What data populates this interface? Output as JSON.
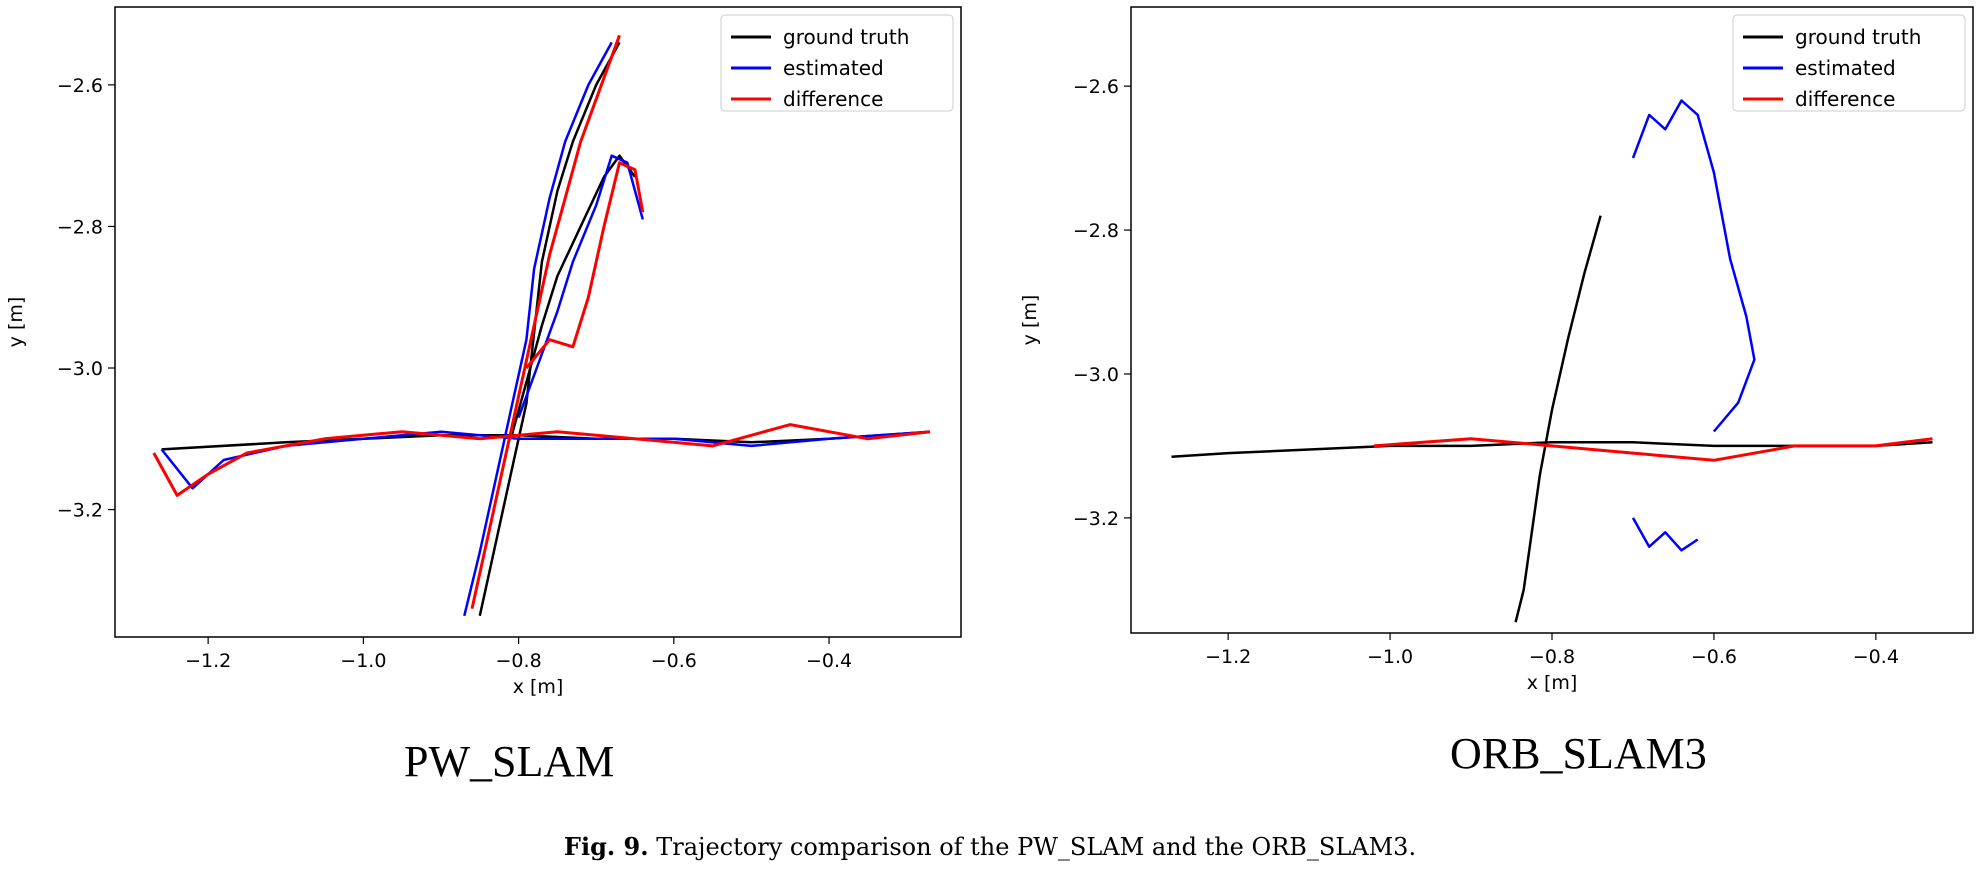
{
  "caption": {
    "label": "Fig. 9.",
    "text": "Trajectory comparison of the PW_SLAM and the ORB_SLAM3."
  },
  "colors": {
    "ground_truth": "#000000",
    "estimated": "#0000ff",
    "difference": "#ff0000"
  },
  "chart_data": [
    {
      "type": "line",
      "subtitle": "PW_SLAM",
      "xlabel": "x [m]",
      "ylabel": "y [m]",
      "xlim": [
        -1.32,
        -0.23
      ],
      "ylim": [
        -3.38,
        -2.49
      ],
      "xticks": [
        -1.2,
        -1.0,
        -0.8,
        -0.6,
        -0.4
      ],
      "yticks": [
        -2.6,
        -2.8,
        -3.0,
        -3.2
      ],
      "xtick_labels": [
        "−1.2",
        "−1.0",
        "−0.8",
        "−0.6",
        "−0.4"
      ],
      "ytick_labels": [
        "−2.6",
        "−2.8",
        "−3.0",
        "−3.2"
      ],
      "legend_position": "top-right",
      "series": [
        {
          "name": "ground truth",
          "color": "#000000",
          "x": [
            -1.26,
            -1.1,
            -1.0,
            -0.9,
            -0.8,
            -0.7,
            -0.6,
            -0.5,
            -0.4,
            -0.27
          ],
          "y": [
            -3.115,
            -3.105,
            -3.1,
            -3.095,
            -3.095,
            -3.1,
            -3.1,
            -3.105,
            -3.1,
            -3.09
          ]
        },
        {
          "name": "ground truth",
          "color": "#000000",
          "x": [
            -0.85,
            -0.83,
            -0.81,
            -0.79,
            -0.78,
            -0.77,
            -0.75,
            -0.73,
            -0.7,
            -0.67
          ],
          "y": [
            -3.35,
            -3.25,
            -3.15,
            -3.05,
            -2.95,
            -2.85,
            -2.75,
            -2.68,
            -2.6,
            -2.54
          ]
        },
        {
          "name": "ground truth",
          "color": "#000000",
          "x": [
            -0.81,
            -0.79,
            -0.77,
            -0.75,
            -0.72,
            -0.69,
            -0.67,
            -0.65
          ],
          "y": [
            -3.1,
            -3.02,
            -2.94,
            -2.87,
            -2.8,
            -2.73,
            -2.7,
            -2.73
          ]
        },
        {
          "name": "estimated",
          "color": "#0000ff",
          "x": [
            -1.26,
            -1.22,
            -1.18,
            -1.1,
            -1.0,
            -0.9,
            -0.8,
            -0.7,
            -0.6,
            -0.5,
            -0.4,
            -0.27
          ],
          "y": [
            -3.115,
            -3.17,
            -3.13,
            -3.11,
            -3.1,
            -3.09,
            -3.1,
            -3.1,
            -3.1,
            -3.11,
            -3.1,
            -3.09
          ]
        },
        {
          "name": "estimated",
          "color": "#0000ff",
          "x": [
            -0.87,
            -0.85,
            -0.83,
            -0.81,
            -0.79,
            -0.78,
            -0.76,
            -0.74,
            -0.71,
            -0.68
          ],
          "y": [
            -3.35,
            -3.26,
            -3.16,
            -3.06,
            -2.96,
            -2.86,
            -2.76,
            -2.68,
            -2.6,
            -2.54
          ]
        },
        {
          "name": "estimated",
          "color": "#0000ff",
          "x": [
            -0.8,
            -0.77,
            -0.75,
            -0.73,
            -0.7,
            -0.68,
            -0.66,
            -0.64
          ],
          "y": [
            -3.07,
            -2.98,
            -2.92,
            -2.85,
            -2.77,
            -2.7,
            -2.71,
            -2.79
          ]
        },
        {
          "name": "difference",
          "color": "#ff0000",
          "x": [
            -1.27,
            -1.24,
            -1.2,
            -1.15,
            -1.05,
            -0.95,
            -0.85,
            -0.75,
            -0.65,
            -0.55,
            -0.45,
            -0.35,
            -0.27
          ],
          "y": [
            -3.12,
            -3.18,
            -3.15,
            -3.12,
            -3.1,
            -3.09,
            -3.1,
            -3.09,
            -3.1,
            -3.11,
            -3.08,
            -3.1,
            -3.09
          ]
        },
        {
          "name": "difference",
          "color": "#ff0000",
          "x": [
            -0.86,
            -0.84,
            -0.82,
            -0.8,
            -0.78,
            -0.76,
            -0.74,
            -0.72,
            -0.69,
            -0.67
          ],
          "y": [
            -3.34,
            -3.24,
            -3.14,
            -3.04,
            -2.94,
            -2.84,
            -2.76,
            -2.68,
            -2.59,
            -2.53
          ]
        },
        {
          "name": "difference",
          "color": "#ff0000",
          "x": [
            -0.79,
            -0.76,
            -0.73,
            -0.71,
            -0.69,
            -0.67,
            -0.65,
            -0.64
          ],
          "y": [
            -3.0,
            -2.96,
            -2.97,
            -2.9,
            -2.8,
            -2.71,
            -2.72,
            -2.78
          ]
        }
      ]
    },
    {
      "type": "line",
      "subtitle": "ORB_SLAM3",
      "xlabel": "x [m]",
      "ylabel": "y [m]",
      "xlim": [
        -1.32,
        -0.28
      ],
      "ylim": [
        -3.36,
        -2.49
      ],
      "xticks": [
        -1.2,
        -1.0,
        -0.8,
        -0.6,
        -0.4
      ],
      "yticks": [
        -2.6,
        -2.8,
        -3.0,
        -3.2
      ],
      "xtick_labels": [
        "−1.2",
        "−1.0",
        "−0.8",
        "−0.6",
        "−0.4"
      ],
      "ytick_labels": [
        "−2.6",
        "−2.8",
        "−3.0",
        "−3.2"
      ],
      "legend_position": "top-right",
      "series": [
        {
          "name": "ground truth",
          "color": "#000000",
          "x": [
            -1.27,
            -1.2,
            -1.1,
            -1.0,
            -0.9,
            -0.8,
            -0.7,
            -0.6,
            -0.5,
            -0.4,
            -0.33
          ],
          "y": [
            -3.115,
            -3.11,
            -3.105,
            -3.1,
            -3.1,
            -3.095,
            -3.095,
            -3.1,
            -3.1,
            -3.1,
            -3.095
          ]
        },
        {
          "name": "ground truth",
          "color": "#000000",
          "x": [
            -0.845,
            -0.835,
            -0.825,
            -0.815,
            -0.8,
            -0.78,
            -0.76,
            -0.74
          ],
          "y": [
            -3.345,
            -3.3,
            -3.22,
            -3.14,
            -3.05,
            -2.95,
            -2.86,
            -2.78
          ]
        },
        {
          "name": "estimated",
          "color": "#0000ff",
          "x": [
            -0.7,
            -0.68,
            -0.66,
            -0.64,
            -0.62,
            -0.6,
            -0.58,
            -0.56,
            -0.55,
            -0.57,
            -0.6
          ],
          "y": [
            -2.7,
            -2.64,
            -2.66,
            -2.62,
            -2.64,
            -2.72,
            -2.84,
            -2.92,
            -2.98,
            -3.04,
            -3.08
          ]
        },
        {
          "name": "estimated",
          "color": "#0000ff",
          "x": [
            -0.7,
            -0.68,
            -0.66,
            -0.64,
            -0.62
          ],
          "y": [
            -3.2,
            -3.24,
            -3.22,
            -3.245,
            -3.23
          ]
        },
        {
          "name": "difference",
          "color": "#ff0000",
          "x": [
            -1.02,
            -0.9,
            -0.8,
            -0.7,
            -0.6,
            -0.5,
            -0.4,
            -0.33
          ],
          "y": [
            -3.1,
            -3.09,
            -3.1,
            -3.11,
            -3.12,
            -3.1,
            -3.1,
            -3.09
          ]
        }
      ]
    }
  ]
}
